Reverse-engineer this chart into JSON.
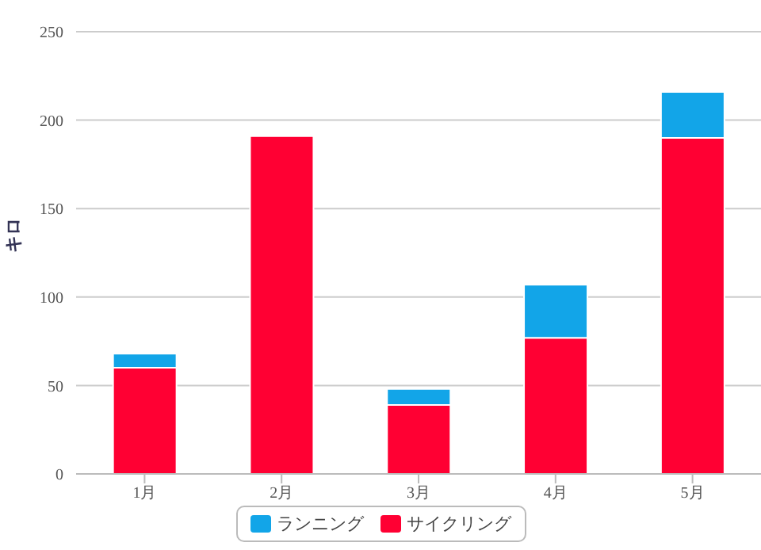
{
  "chart_data": {
    "type": "bar",
    "stacked": true,
    "ylabel": "キロ",
    "categories": [
      "1月",
      "2月",
      "3月",
      "4月",
      "5月"
    ],
    "series": [
      {
        "name": "サイクリング",
        "color": "#ff0033",
        "values": [
          60,
          191,
          39,
          77,
          190
        ]
      },
      {
        "name": "ランニング",
        "color": "#12a5e8",
        "values": [
          8,
          0,
          9,
          30,
          26
        ]
      }
    ],
    "ylim": [
      0,
      250
    ],
    "yticks": [
      0,
      50,
      100,
      150,
      200,
      250
    ],
    "grid": "y",
    "legend": "bottom"
  }
}
